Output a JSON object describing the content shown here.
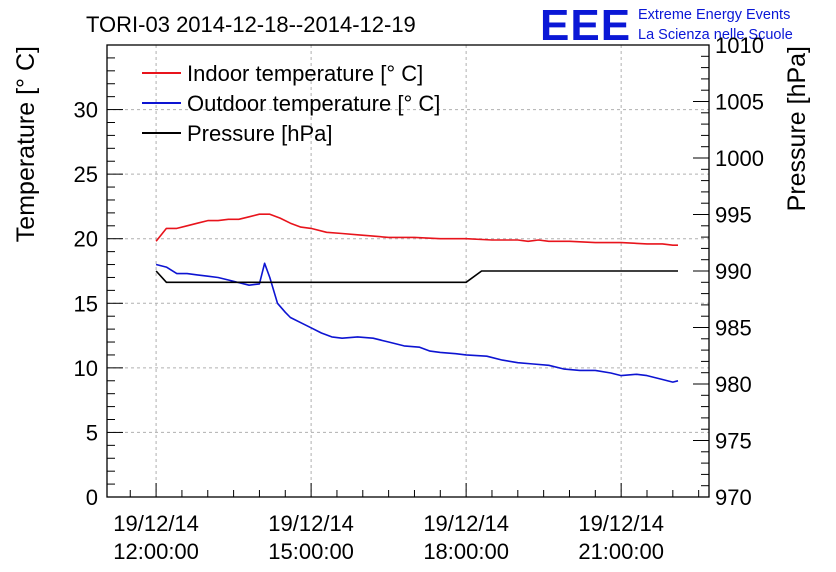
{
  "chart_data": {
    "type": "line",
    "title": "TORI-03 2014-12-18--2014-12-19",
    "ylabel": "Temperature [° C]",
    "y2label": "Pressure [hPa]",
    "ylim": [
      0,
      35
    ],
    "y2lim": [
      970,
      1010
    ],
    "x_range_hours": [
      11.05,
      22.7
    ],
    "grid": true,
    "legend_position": "top-left",
    "x_ticks": [
      {
        "hour": 12,
        "date": "19/12/14",
        "time": "12:00:00"
      },
      {
        "hour": 15,
        "date": "19/12/14",
        "time": "15:00:00"
      },
      {
        "hour": 18,
        "date": "19/12/14",
        "time": "18:00:00"
      },
      {
        "hour": 21,
        "date": "19/12/14",
        "time": "21:00:00"
      }
    ],
    "y_ticks": [
      0,
      5,
      10,
      15,
      20,
      25,
      30
    ],
    "y2_ticks": [
      970,
      975,
      980,
      985,
      990,
      995,
      1000,
      1005,
      1010
    ],
    "series": [
      {
        "name": "Indoor temperature [° C]",
        "axis": "left",
        "color": "#e8141c",
        "points": [
          [
            12.0,
            19.8
          ],
          [
            12.2,
            20.8
          ],
          [
            12.4,
            20.8
          ],
          [
            12.6,
            21.0
          ],
          [
            12.8,
            21.2
          ],
          [
            13.0,
            21.4
          ],
          [
            13.2,
            21.4
          ],
          [
            13.4,
            21.5
          ],
          [
            13.6,
            21.5
          ],
          [
            13.8,
            21.7
          ],
          [
            14.0,
            21.9
          ],
          [
            14.2,
            21.9
          ],
          [
            14.4,
            21.6
          ],
          [
            14.6,
            21.2
          ],
          [
            14.8,
            20.9
          ],
          [
            15.0,
            20.8
          ],
          [
            15.3,
            20.5
          ],
          [
            15.6,
            20.4
          ],
          [
            15.9,
            20.3
          ],
          [
            16.2,
            20.2
          ],
          [
            16.5,
            20.1
          ],
          [
            17.0,
            20.1
          ],
          [
            17.5,
            20.0
          ],
          [
            18.0,
            20.0
          ],
          [
            18.5,
            19.9
          ],
          [
            19.0,
            19.9
          ],
          [
            19.2,
            19.8
          ],
          [
            19.4,
            19.9
          ],
          [
            19.6,
            19.8
          ],
          [
            20.0,
            19.8
          ],
          [
            20.5,
            19.7
          ],
          [
            21.0,
            19.7
          ],
          [
            21.5,
            19.6
          ],
          [
            21.8,
            19.6
          ],
          [
            22.0,
            19.5
          ],
          [
            22.1,
            19.5
          ]
        ]
      },
      {
        "name": "Outdoor temperature [° C]",
        "axis": "left",
        "color": "#0d14d2",
        "points": [
          [
            12.0,
            18.0
          ],
          [
            12.2,
            17.8
          ],
          [
            12.4,
            17.3
          ],
          [
            12.6,
            17.3
          ],
          [
            12.8,
            17.2
          ],
          [
            13.0,
            17.1
          ],
          [
            13.2,
            17.0
          ],
          [
            13.4,
            16.8
          ],
          [
            13.6,
            16.6
          ],
          [
            13.8,
            16.4
          ],
          [
            14.0,
            16.5
          ],
          [
            14.1,
            18.1
          ],
          [
            14.2,
            17.0
          ],
          [
            14.35,
            15.0
          ],
          [
            14.5,
            14.3
          ],
          [
            14.6,
            13.9
          ],
          [
            14.8,
            13.5
          ],
          [
            15.0,
            13.1
          ],
          [
            15.2,
            12.7
          ],
          [
            15.4,
            12.4
          ],
          [
            15.6,
            12.3
          ],
          [
            15.9,
            12.4
          ],
          [
            16.2,
            12.3
          ],
          [
            16.5,
            12.0
          ],
          [
            16.8,
            11.7
          ],
          [
            17.1,
            11.6
          ],
          [
            17.3,
            11.3
          ],
          [
            17.5,
            11.2
          ],
          [
            17.8,
            11.1
          ],
          [
            18.0,
            11.0
          ],
          [
            18.4,
            10.9
          ],
          [
            18.7,
            10.6
          ],
          [
            19.0,
            10.4
          ],
          [
            19.3,
            10.3
          ],
          [
            19.6,
            10.2
          ],
          [
            19.9,
            9.9
          ],
          [
            20.2,
            9.8
          ],
          [
            20.5,
            9.8
          ],
          [
            20.8,
            9.6
          ],
          [
            21.0,
            9.4
          ],
          [
            21.3,
            9.5
          ],
          [
            21.5,
            9.4
          ],
          [
            21.8,
            9.1
          ],
          [
            22.0,
            8.9
          ],
          [
            22.1,
            9.0
          ]
        ]
      },
      {
        "name": "Pressure [hPa]",
        "axis": "right",
        "color": "#000000",
        "points": [
          [
            12.0,
            990
          ],
          [
            12.2,
            989
          ],
          [
            18.0,
            989
          ],
          [
            18.3,
            990
          ],
          [
            22.1,
            990
          ]
        ]
      }
    ]
  },
  "logo": {
    "letters": "EEE",
    "line1": "Extreme Energy Events",
    "line2": "La Scienza nelle Scuole"
  }
}
